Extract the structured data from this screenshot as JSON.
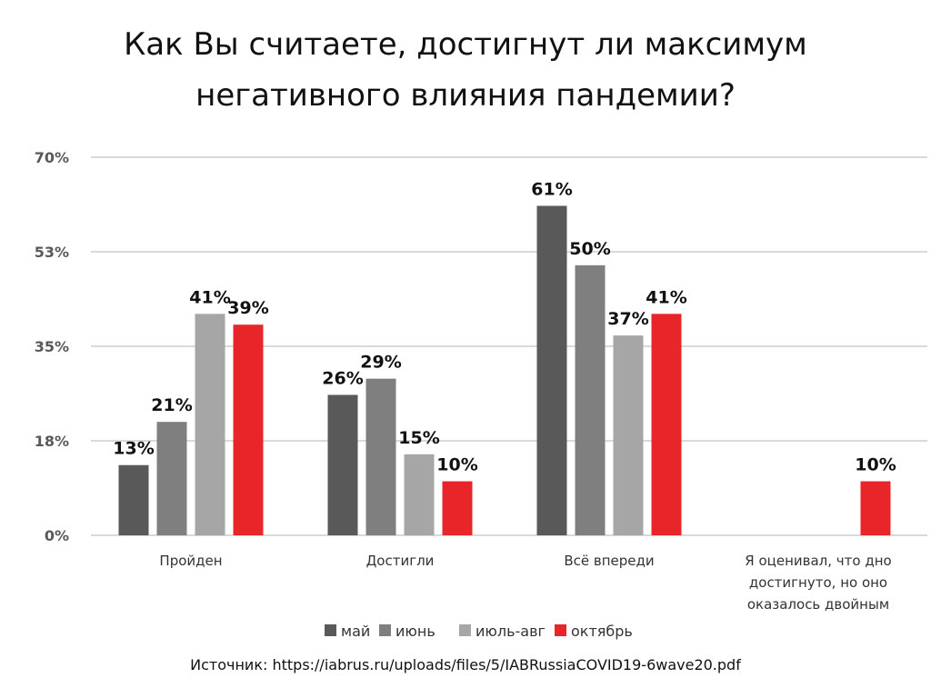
{
  "title_line1": "Как Вы считаете, достигнут ли максимум",
  "title_line2": "негативного  влияния пандемии?",
  "source": "Источник: https://iabrus.ru/uploads/files/5/IABRussiaCOVID19-6wave20.pdf",
  "chart_data": {
    "type": "bar",
    "title": "Как Вы считаете, достигнут ли максимум негативного влияния пандемии?",
    "xlabel": "",
    "ylabel": "",
    "ylim": [
      0,
      70
    ],
    "yticks": [
      0,
      17.5,
      35,
      52.5,
      70
    ],
    "ytick_labels": [
      "0%",
      "18%",
      "35%",
      "53%",
      "70%"
    ],
    "grid": true,
    "legend_position": "bottom",
    "categories": [
      [
        "Пройден"
      ],
      [
        "Достигли"
      ],
      [
        "Всё впереди"
      ],
      [
        "Я оценивал, что дно",
        "достигнуто, но оно",
        "оказалось двойным"
      ]
    ],
    "series": [
      {
        "name": "май",
        "color": "#595959",
        "values": [
          13,
          26,
          61,
          null
        ]
      },
      {
        "name": "июнь",
        "color": "#7f7f7f",
        "values": [
          21,
          29,
          50,
          null
        ]
      },
      {
        "name": "июль-авг",
        "color": "#a6a6a6",
        "values": [
          41,
          15,
          37,
          null
        ]
      },
      {
        "name": "октябрь",
        "color": "#e8262a",
        "values": [
          39,
          10,
          41,
          10
        ]
      }
    ],
    "data_labels": [
      [
        "13%",
        "26%",
        "61%",
        null
      ],
      [
        "21%",
        "29%",
        "50%",
        null
      ],
      [
        "41%",
        "15%",
        "37%",
        null
      ],
      [
        "39%",
        "10%",
        "41%",
        "10%"
      ]
    ]
  }
}
